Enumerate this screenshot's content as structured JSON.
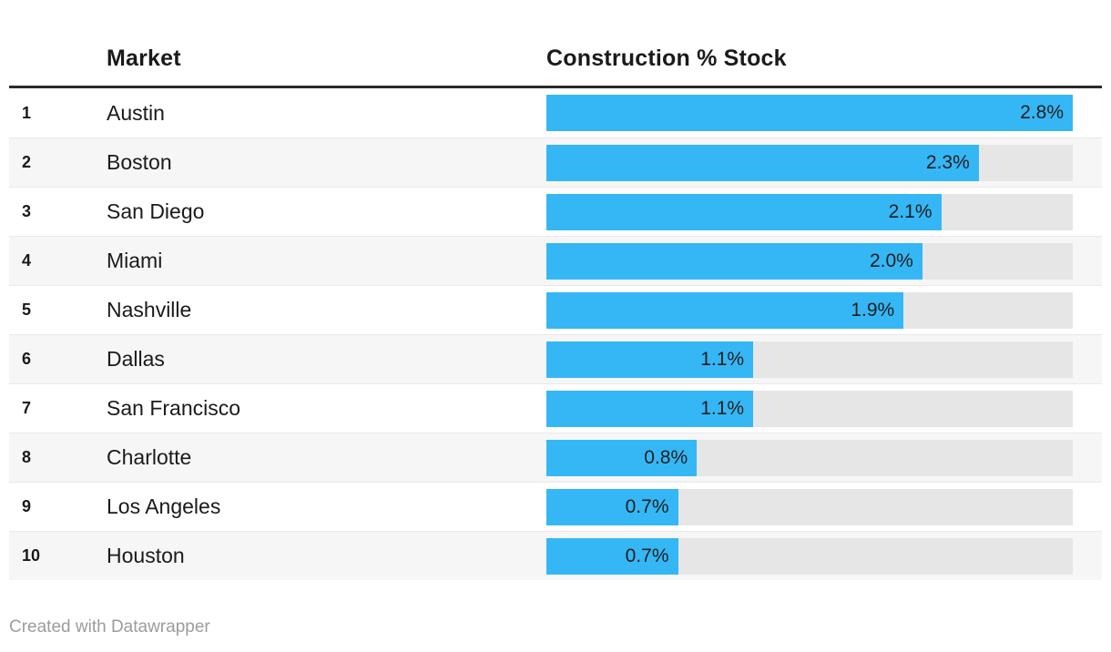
{
  "header": {
    "market_label": "Market",
    "value_label": "Construction % Stock"
  },
  "footer": {
    "credit": "Created with Datawrapper"
  },
  "colors": {
    "bar": "#35b7f5",
    "track": "#e6e6e6",
    "alt_row": "#f6f6f6",
    "header_rule": "#2a2a2a",
    "footer_text": "#9c9c9c"
  },
  "chart_data": {
    "type": "bar",
    "title": "",
    "columns": [
      "Market",
      "Construction % Stock"
    ],
    "orientation": "horizontal",
    "xlim": [
      0,
      2.8
    ],
    "grid": false,
    "legend": false,
    "ranks": [
      1,
      2,
      3,
      4,
      5,
      6,
      7,
      8,
      9,
      10
    ],
    "categories": [
      "Austin",
      "Boston",
      "San Diego",
      "Miami",
      "Nashville",
      "Dallas",
      "San Francisco",
      "Charlotte",
      "Los Angeles",
      "Houston"
    ],
    "values": [
      2.8,
      2.3,
      2.1,
      2.0,
      1.9,
      1.1,
      1.1,
      0.8,
      0.7,
      0.7
    ],
    "value_labels": [
      "2.8%",
      "2.3%",
      "2.1%",
      "2.0%",
      "1.9%",
      "1.1%",
      "1.1%",
      "0.8%",
      "0.7%",
      "0.7%"
    ]
  }
}
